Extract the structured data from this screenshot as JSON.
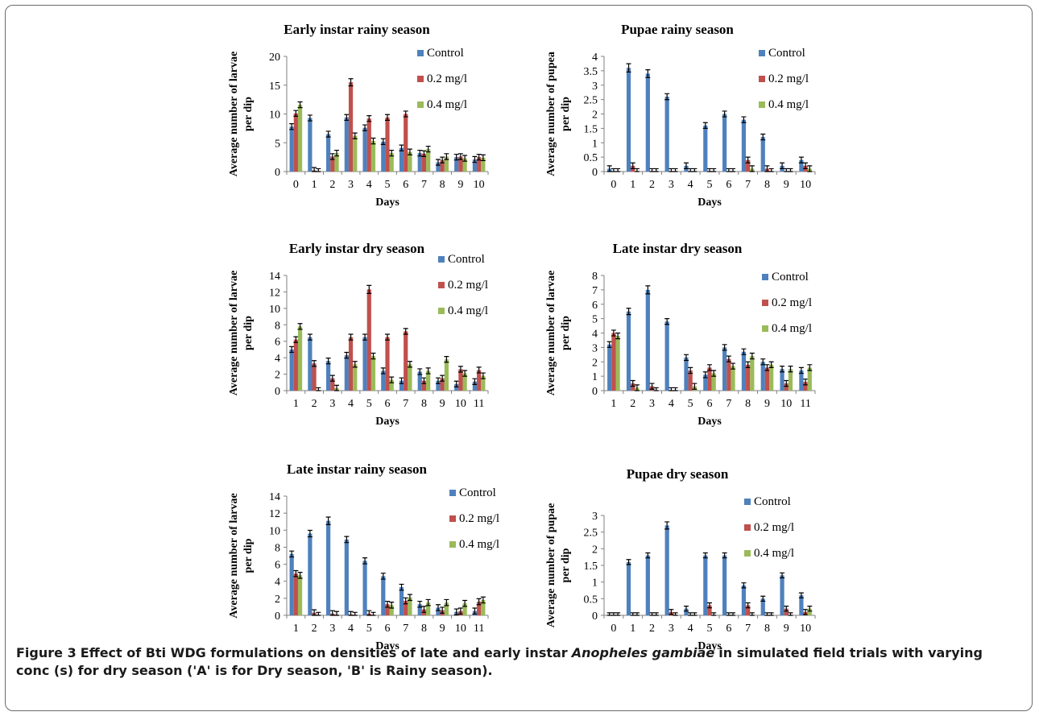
{
  "colors": {
    "control": "#4f81bd",
    "c02": "#c0504d",
    "c04": "#9bbb59",
    "axis": "#808080",
    "error": "#000000"
  },
  "legend_labels": [
    "Control",
    "0.2 mg/l",
    "0.4 mg/l"
  ],
  "caption": {
    "lead": "Figure 3",
    "pre": "Effect of Bti WDG formulations on densities of late and early instar",
    "species": "Anopheles gambiae",
    "post": "in simulated field trials with varying conc (s) for dry season ('A' is for Dry season, 'B' is Rainy season)."
  },
  "chart_data": [
    {
      "type": "bar",
      "title": "Early instar rainy season",
      "xlabel": "Days",
      "ylabel": "Average number of larvae per dip",
      "ylabel_lines": [
        "Average number of larvae",
        "per dip"
      ],
      "categories": [
        "0",
        "1",
        "2",
        "3",
        "4",
        "5",
        "6",
        "7",
        "8",
        "9",
        "10"
      ],
      "ylim": [
        0,
        20
      ],
      "yticks": [
        "0",
        "5",
        "10",
        "15",
        "20"
      ],
      "legend": "right",
      "series": [
        {
          "name": "Control",
          "values": [
            7.8,
            9.3,
            6.5,
            9.4,
            7.6,
            5.2,
            4.1,
            3.2,
            1.6,
            2.5,
            2.1
          ]
        },
        {
          "name": "0.2 mg/l",
          "values": [
            10.1,
            0.2,
            2.6,
            15.5,
            9.2,
            9.4,
            10.0,
            3.1,
            2.0,
            2.6,
            2.5
          ]
        },
        {
          "name": "0.4 mg/l",
          "values": [
            11.6,
            0.0,
            3.2,
            6.2,
            5.3,
            3.2,
            3.4,
            3.9,
            2.6,
            2.3,
            2.4
          ]
        }
      ]
    },
    {
      "type": "bar",
      "title": "Pupae rainy season",
      "xlabel": "Days",
      "ylabel": "Average number of pupea per dip",
      "ylabel_lines": [
        "Average number of pupea",
        "per dip"
      ],
      "categories": [
        "0",
        "1",
        "2",
        "3",
        "4",
        "5",
        "6",
        "7",
        "8",
        "9",
        "10"
      ],
      "ylim": [
        0,
        4
      ],
      "yticks": [
        "0",
        "0.5",
        "1",
        "1.5",
        "2",
        "2.5",
        "3",
        "3.5",
        "4"
      ],
      "legend": "right",
      "series": [
        {
          "name": "Control",
          "values": [
            0.1,
            3.6,
            3.4,
            2.6,
            0.2,
            1.6,
            2.0,
            1.8,
            1.2,
            0.2,
            0.4
          ]
        },
        {
          "name": "0.2 mg/l",
          "values": [
            0,
            0.2,
            0,
            0,
            0,
            0,
            0,
            0.4,
            0.1,
            0,
            0.2
          ]
        },
        {
          "name": "0.4 mg/l",
          "values": [
            0,
            0,
            0,
            0,
            0,
            0,
            0,
            0.1,
            0,
            0,
            0.1
          ]
        }
      ]
    },
    {
      "type": "bar",
      "title": "Early instar dry season",
      "xlabel": "Days",
      "ylabel": "Average number of larvae per dip",
      "ylabel_lines": [
        "Average number of larvae",
        "per dip"
      ],
      "categories": [
        "1",
        "2",
        "3",
        "4",
        "5",
        "6",
        "7",
        "8",
        "9",
        "10",
        "11"
      ],
      "ylim": [
        0,
        14
      ],
      "yticks": [
        "0",
        "2",
        "4",
        "6",
        "8",
        "10",
        "12",
        "14"
      ],
      "legend": "right",
      "series": [
        {
          "name": "Control",
          "values": [
            5.0,
            6.5,
            3.6,
            4.3,
            6.5,
            2.4,
            1.2,
            2.3,
            1.2,
            0.8,
            1.1
          ]
        },
        {
          "name": "0.2 mg/l",
          "values": [
            6.2,
            3.3,
            1.5,
            6.5,
            12.3,
            6.5,
            7.2,
            1.2,
            1.5,
            2.6,
            2.5
          ]
        },
        {
          "name": "0.4 mg/l",
          "values": [
            7.8,
            0,
            0.3,
            3.2,
            4.2,
            1.3,
            3.2,
            2.4,
            3.8,
            2.1,
            1.8
          ]
        }
      ]
    },
    {
      "type": "bar",
      "title": "Late instar dry season",
      "xlabel": "Days",
      "ylabel": "Average number of larvae per dip",
      "ylabel_lines": [
        "Average number of larvae",
        "per dip"
      ],
      "categories": [
        "1",
        "2",
        "3",
        "4",
        "5",
        "6",
        "7",
        "8",
        "9",
        "10",
        "11"
      ],
      "ylim": [
        0,
        8
      ],
      "yticks": [
        "0",
        "1",
        "2",
        "3",
        "4",
        "5",
        "6",
        "7",
        "8"
      ],
      "legend": "right",
      "series": [
        {
          "name": "Control",
          "values": [
            3.2,
            5.5,
            7.0,
            4.8,
            2.3,
            1.1,
            3.0,
            2.7,
            2.0,
            1.5,
            1.4
          ]
        },
        {
          "name": "0.2 mg/l",
          "values": [
            4.0,
            0.5,
            0.3,
            0,
            1.4,
            1.6,
            2.2,
            1.8,
            1.6,
            0.5,
            0.6
          ]
        },
        {
          "name": "0.4 mg/l",
          "values": [
            3.8,
            0.2,
            0,
            0,
            0.3,
            1.2,
            1.7,
            2.4,
            1.8,
            1.5,
            1.6
          ]
        }
      ]
    },
    {
      "type": "bar",
      "title": "Late instar rainy season",
      "xlabel": "Days",
      "ylabel": "Average number of larvae per dip",
      "ylabel_lines": [
        "Average number of larvae",
        "per dip"
      ],
      "categories": [
        "1",
        "2",
        "3",
        "4",
        "5",
        "6",
        "7",
        "8",
        "9",
        "10",
        "11"
      ],
      "ylim": [
        0,
        14
      ],
      "yticks": [
        "0",
        "2",
        "4",
        "6",
        "8",
        "10",
        "12",
        "14"
      ],
      "legend": "right",
      "series": [
        {
          "name": "Control",
          "values": [
            7.2,
            9.6,
            11.1,
            8.9,
            6.4,
            4.6,
            3.3,
            1.3,
            0.9,
            0.4,
            0.5
          ]
        },
        {
          "name": "0.2 mg/l",
          "values": [
            4.9,
            0.3,
            0.2,
            0.1,
            0.2,
            1.3,
            1.7,
            0.7,
            0.6,
            0.5,
            1.6
          ]
        },
        {
          "name": "0.4 mg/l",
          "values": [
            4.7,
            0,
            0.1,
            0,
            0,
            1.2,
            2.1,
            1.5,
            1.5,
            1.4,
            1.8
          ]
        }
      ]
    },
    {
      "type": "bar",
      "title": "Pupae dry season",
      "xlabel": "Days",
      "ylabel": "Average number of pupae per dip",
      "ylabel_lines": [
        "Average number of pupae",
        "per dip"
      ],
      "categories": [
        "0",
        "1",
        "2",
        "3",
        "4",
        "5",
        "6",
        "7",
        "8",
        "9",
        "10"
      ],
      "ylim": [
        0,
        3
      ],
      "yticks": [
        "0",
        "0.5",
        "1",
        "1.5",
        "2",
        "2.5",
        "3"
      ],
      "legend": "right",
      "series": [
        {
          "name": "Control",
          "values": [
            0,
            1.6,
            1.8,
            2.7,
            0.2,
            1.8,
            1.8,
            0.9,
            0.5,
            1.2,
            0.6
          ]
        },
        {
          "name": "0.2 mg/l",
          "values": [
            0,
            0,
            0,
            0.1,
            0,
            0.3,
            0,
            0.3,
            0,
            0.2,
            0.1
          ]
        },
        {
          "name": "0.4 mg/l",
          "values": [
            0,
            0,
            0,
            0,
            0,
            0,
            0,
            0,
            0,
            0,
            0.2
          ]
        }
      ]
    }
  ]
}
